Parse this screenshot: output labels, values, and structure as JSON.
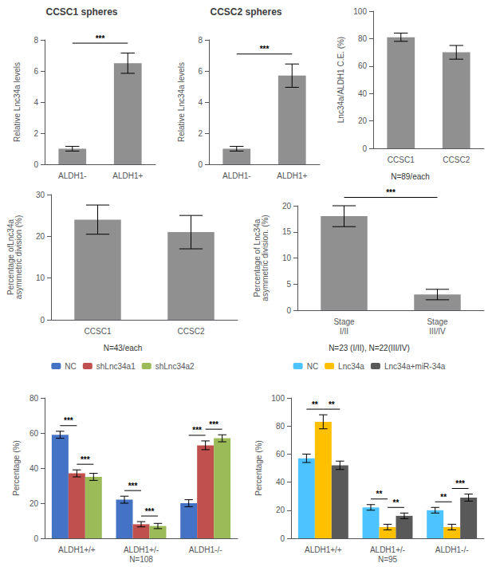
{
  "chart_data": [
    {
      "type": "bar",
      "title": "CCSC1 spheres",
      "categories": [
        "ALDH1-",
        "ALDH1+"
      ],
      "values": [
        1.0,
        6.5
      ],
      "errors": [
        0.15,
        0.65
      ],
      "color": "#909090",
      "ylabel": "Relative Lnc34a levels",
      "ylim": [
        0,
        8
      ],
      "yticks": [
        0,
        2,
        4,
        6,
        8
      ],
      "grid": false,
      "annotations": [
        {
          "text": "***",
          "between": [
            "ALDH1-",
            "ALDH1+"
          ]
        }
      ]
    },
    {
      "type": "bar",
      "title": "CCSC2 spheres",
      "categories": [
        "ALDH1-",
        "ALDH1+"
      ],
      "values": [
        1.0,
        5.7
      ],
      "errors": [
        0.15,
        0.75
      ],
      "color": "#909090",
      "ylabel": "Relative Lnc34a levels",
      "ylim": [
        0,
        8
      ],
      "yticks": [
        0,
        2,
        4,
        6,
        8
      ],
      "grid": false,
      "annotations": [
        {
          "text": "***",
          "between": [
            "ALDH1-",
            "ALDH1+"
          ]
        }
      ]
    },
    {
      "type": "bar",
      "categories": [
        "CCSC1",
        "CCSC2"
      ],
      "values": [
        81.0,
        70.0
      ],
      "errors": [
        3.0,
        5.0
      ],
      "color": "#909090",
      "ylabel": "Lnc34a/ALDH1 C.E. (%)",
      "ylim": [
        0,
        100
      ],
      "yticks": [
        0,
        20,
        40,
        60,
        80,
        100
      ],
      "grid": false,
      "annotations": [
        {
          "text": "N=89/each"
        }
      ]
    },
    {
      "type": "bar",
      "categories": [
        "CCSC1",
        "CCSC2"
      ],
      "values": [
        24.0,
        21.0
      ],
      "errors": [
        3.5,
        4.0
      ],
      "color": "#909090",
      "ylabel": "Percentage ofLnc34a\nasymmetric division (%)",
      "ylim": [
        0,
        30
      ],
      "yticks": [
        0,
        10,
        20,
        30
      ],
      "grid": false,
      "annotations": [
        {
          "text": "N=43/each"
        }
      ]
    },
    {
      "type": "bar",
      "categories": [
        "Stage\nI/II",
        "Stage\nIII/IV"
      ],
      "values": [
        18.0,
        3.0
      ],
      "errors": [
        2.0,
        1.0
      ],
      "color": "#909090",
      "ylabel": "Percentage of Lnc34a\nasymmetric division. (%)",
      "ylim": [
        0,
        20
      ],
      "yticks": [
        0,
        5,
        10,
        15,
        20
      ],
      "grid": false,
      "annotations": [
        {
          "text": "***",
          "between": [
            "Stage\nI/II",
            "Stage\nIII/IV"
          ]
        },
        {
          "text": "N=23 (I/II), N=22(III/IV)"
        }
      ]
    },
    {
      "type": "bar",
      "categories": [
        "ALDH1+/+",
        "ALDH1+/-\nN=108",
        "ALDH1-/-"
      ],
      "series": [
        {
          "name": "NC",
          "color": "#4472c4",
          "values": [
            59.0,
            22.0,
            20.0
          ],
          "errors": [
            2.0,
            2.0,
            2.0
          ]
        },
        {
          "name": "shLnc34a1",
          "color": "#c0504d",
          "values": [
            37.0,
            8.0,
            53.0
          ],
          "errors": [
            2.0,
            1.5,
            2.5
          ]
        },
        {
          "name": "shLnc34a2",
          "color": "#9bbb59",
          "values": [
            35.0,
            7.0,
            57.0
          ],
          "errors": [
            2.0,
            1.5,
            2.0
          ]
        }
      ],
      "ylabel": "Percentage (%)",
      "ylim": [
        0,
        80
      ],
      "yticks": [
        0,
        20,
        40,
        60,
        80
      ],
      "grid": false,
      "legend": "top",
      "annotations": [
        {
          "text": "***",
          "category": "ALDH1+/+",
          "between": [
            "NC",
            "shLnc34a1"
          ]
        },
        {
          "text": "***",
          "category": "ALDH1+/+",
          "between": [
            "shLnc34a1",
            "shLnc34a2"
          ]
        },
        {
          "text": "***",
          "category": "ALDH1+/-\nN=108",
          "between": [
            "NC",
            "shLnc34a1"
          ]
        },
        {
          "text": "***",
          "category": "ALDH1+/-\nN=108",
          "between": [
            "shLnc34a1",
            "shLnc34a2"
          ]
        },
        {
          "text": "***",
          "category": "ALDH1-/-",
          "between": [
            "NC",
            "shLnc34a1"
          ]
        },
        {
          "text": "***",
          "category": "ALDH1-/-",
          "between": [
            "shLnc34a1",
            "shLnc34a2"
          ]
        }
      ]
    },
    {
      "type": "bar",
      "categories": [
        "ALDH1+/+",
        "ALDH1+/-\nN=95",
        "ALDH1-/-"
      ],
      "series": [
        {
          "name": "NC",
          "color": "#4dc3ff",
          "values": [
            57.0,
            22.0,
            20.0
          ],
          "errors": [
            3.0,
            2.0,
            2.0
          ]
        },
        {
          "name": "Lnc34a",
          "color": "#ffc000",
          "values": [
            83.0,
            8.0,
            8.0
          ],
          "errors": [
            5.0,
            2.0,
            2.0
          ]
        },
        {
          "name": "Lnc34a+miR-34a",
          "color": "#595959",
          "values": [
            52.0,
            16.0,
            29.0
          ],
          "errors": [
            3.0,
            2.0,
            2.5
          ]
        }
      ],
      "ylabel": "Percentage (%)",
      "ylim": [
        0,
        100
      ],
      "yticks": [
        0,
        20,
        40,
        60,
        80,
        100
      ],
      "grid": false,
      "legend": "top",
      "annotations": [
        {
          "text": "**",
          "category": "ALDH1+/+",
          "between": [
            "NC",
            "Lnc34a"
          ]
        },
        {
          "text": "**",
          "category": "ALDH1+/+",
          "between": [
            "Lnc34a",
            "Lnc34a+miR-34a"
          ]
        },
        {
          "text": "**",
          "category": "ALDH1+/-\nN=95",
          "between": [
            "NC",
            "Lnc34a"
          ]
        },
        {
          "text": "**",
          "category": "ALDH1+/-\nN=95",
          "between": [
            "Lnc34a",
            "Lnc34a+miR-34a"
          ]
        },
        {
          "text": "**",
          "category": "ALDH1-/-",
          "between": [
            "NC",
            "Lnc34a"
          ]
        },
        {
          "text": "***",
          "category": "ALDH1-/-",
          "between": [
            "Lnc34a",
            "Lnc34a+miR-34a"
          ]
        }
      ]
    }
  ]
}
